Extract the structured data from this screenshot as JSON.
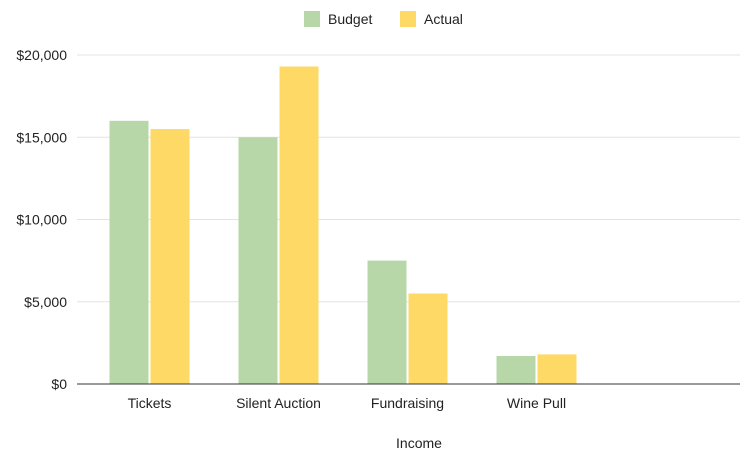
{
  "chart_data": {
    "type": "bar",
    "title": "",
    "xlabel": "Income",
    "ylabel": "",
    "categories": [
      "Tickets",
      "Silent Auction",
      "Fundraising",
      "Wine Pull"
    ],
    "series": [
      {
        "name": "Budget",
        "values": [
          16000,
          15000,
          7500,
          1700
        ],
        "color": "#b7d7a8"
      },
      {
        "name": "Actual",
        "values": [
          15500,
          19300,
          5500,
          1800
        ],
        "color": "#ffd966"
      }
    ],
    "ylim": [
      0,
      20000
    ],
    "yticks": [
      {
        "value": 0,
        "label": "$0"
      },
      {
        "value": 5000,
        "label": "$5,000"
      },
      {
        "value": 10000,
        "label": "$10,000"
      },
      {
        "value": 15000,
        "label": "$15,000"
      },
      {
        "value": 20000,
        "label": "$20,000"
      }
    ],
    "grid": true,
    "legend": "top"
  }
}
